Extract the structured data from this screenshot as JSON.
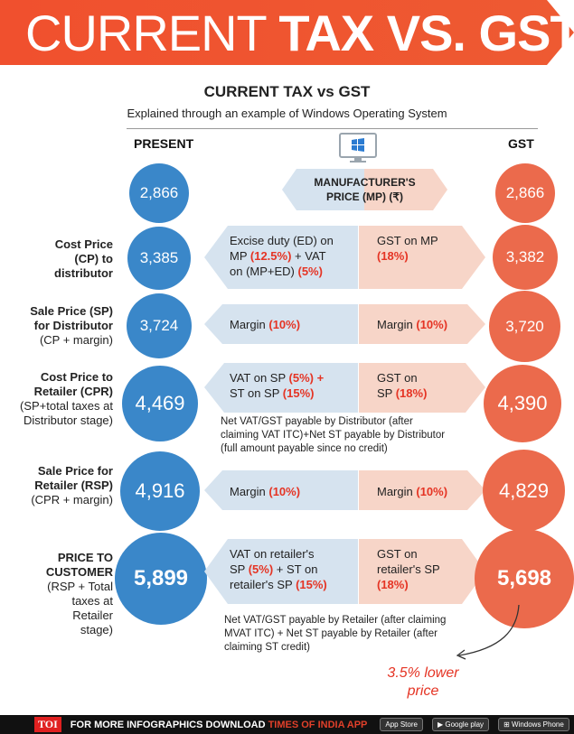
{
  "banner": {
    "light": "CURRENT ",
    "bold": "TAX VS. GST"
  },
  "header": {
    "title": "CURRENT TAX vs GST",
    "subtitle": "Explained through an example of Windows Operating System",
    "present_label": "PRESENT",
    "gst_label": "GST"
  },
  "manufacturer": {
    "line1": "MANUFACTURER'S",
    "line2": "PRICE (MP) (₹)"
  },
  "rows": [
    {
      "present": "2,866",
      "gst": "2,866"
    },
    {
      "label1": "Cost Price",
      "label2": "(CP) to",
      "label3": "distributor",
      "present": "3,385",
      "gst": "3,382",
      "left_a": "Excise duty (ED) on",
      "left_b": "MP ",
      "left_b_red": "(12.5%)",
      "left_b_tail": " + VAT",
      "left_c": "on (MP+ED) ",
      "left_c_red": "(5%)",
      "right_a": "GST on MP",
      "right_b_red": "(18%)"
    },
    {
      "label1": "Sale Price (SP)",
      "label2": "for Distributor",
      "label3": "(CP + margin)",
      "present": "3,724",
      "gst": "3,720",
      "left_a": "Margin ",
      "left_a_red": "(10%)",
      "right_a": "Margin ",
      "right_a_red": "(10%)"
    },
    {
      "label1": "Cost Price to",
      "label2": "Retailer (CPR)",
      "label3": "(SP+total taxes at",
      "label4": "Distributor stage)",
      "present": "4,469",
      "gst": "4,390",
      "left_a": "VAT on SP ",
      "left_a_red": "(5%) +",
      "left_b": "ST on SP ",
      "left_b_red": "(15%)",
      "right_a": "GST on",
      "right_b": "SP ",
      "right_b_red": "(18%)",
      "note1": "Net VAT/GST payable by Distributor (after",
      "note2": "claiming VAT ITC)+Net ST payable by Distributor",
      "note3": "(full amount payable since no credit)"
    },
    {
      "label1": "Sale Price for",
      "label2": "Retailer (RSP)",
      "label3": "(CPR + margin)",
      "present": "4,916",
      "gst": "4,829",
      "left_a": "Margin ",
      "left_a_red": "(10%)",
      "right_a": "Margin ",
      "right_a_red": "(10%)"
    },
    {
      "label1": "PRICE TO",
      "label2": "CUSTOMER",
      "label3": "(RSP + Total",
      "label4": "taxes at",
      "label5": "Retailer",
      "label6": "stage)",
      "present": "5,899",
      "gst": "5,698",
      "left_a": "VAT on retailer's",
      "left_b": "SP ",
      "left_b_red": "(5%)",
      "left_b_mid": " + ST on",
      "left_c": "retailer's SP ",
      "left_c_red": "(15%)",
      "right_a": "GST on",
      "right_b": "retailer's SP",
      "right_c_red": "(18%)",
      "note1": "Net VAT/GST payable by Retailer (after claiming",
      "note2": "MVAT ITC) + Net ST payable by Retailer (after",
      "note3": "claiming ST credit)"
    }
  ],
  "callout": {
    "line1": "3.5% lower",
    "line2": "price"
  },
  "footer": {
    "brand": "TOI",
    "text": "FOR MORE  INFOGRAPHICS DOWNLOAD ",
    "accent": "TIMES OF INDIA APP",
    "stores": [
      "App Store",
      "Google play",
      "Windows Phone"
    ]
  },
  "colors": {
    "banner": "#f0502e",
    "blue": "#3a87c9",
    "red": "#eb6a4c",
    "accent_text": "#e53424"
  },
  "icons": [
    "windows-monitor-icon",
    "apple-icon",
    "google-play-icon",
    "windows-icon",
    "curved-arrow-icon"
  ]
}
